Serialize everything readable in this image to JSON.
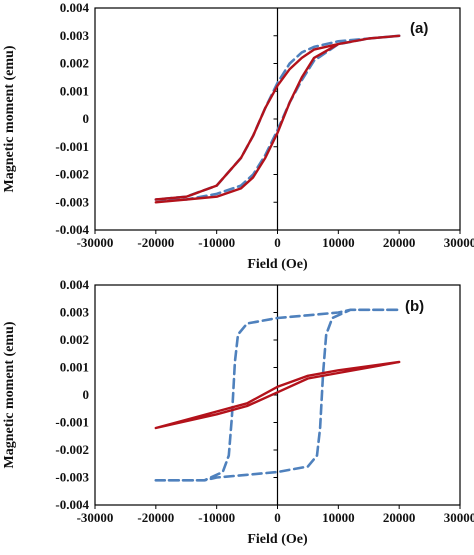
{
  "colors": {
    "solid_series": "#b3121b",
    "dashed_series": "#4f81bd",
    "axis": "#000000"
  },
  "chart_data": [
    {
      "type": "line",
      "panel_label": "(a)",
      "xlabel": "Field (Oe)",
      "ylabel": "Magnetic moment (emu)",
      "xlim": [
        -30000,
        30000
      ],
      "ylim": [
        -0.004,
        0.004
      ],
      "x_ticks": [
        -30000,
        -20000,
        -10000,
        0,
        10000,
        20000,
        30000
      ],
      "y_ticks": [
        0.004,
        0.003,
        0.002,
        0.001,
        0,
        -0.001,
        -0.002,
        -0.003,
        -0.004
      ],
      "x_tick_labels": [
        "-30000",
        "-20000",
        "-10000",
        "0",
        "10000",
        "20000",
        "30000"
      ],
      "y_tick_labels": [
        "0.004",
        "0.003",
        "0.002",
        "0.001",
        "0",
        "-0.001",
        "-0.002",
        "-0.003",
        "-0.004"
      ],
      "grid": false,
      "series": [
        {
          "style": "dashed",
          "color": "#4f81bd",
          "x": [
            -20000,
            -15000,
            -10000,
            -6000,
            -4000,
            -2000,
            0,
            2000,
            4000,
            6000,
            10000,
            15000,
            20000,
            15000,
            10000,
            6000,
            4000,
            2000,
            0,
            -2000,
            -4000,
            -6000,
            -10000,
            -15000,
            -20000
          ],
          "y": [
            -0.0029,
            -0.0029,
            -0.0027,
            -0.0024,
            -0.002,
            -0.0013,
            -0.0004,
            0.0006,
            0.0014,
            0.0021,
            0.0027,
            0.0029,
            0.003,
            0.0029,
            0.0028,
            0.0026,
            0.0024,
            0.002,
            0.0013,
            0.0004,
            -0.0006,
            -0.0014,
            -0.0024,
            -0.0028,
            -0.0029
          ]
        },
        {
          "style": "solid",
          "color": "#b3121b",
          "x": [
            -20000,
            -15000,
            -10000,
            -6000,
            -4000,
            -2000,
            0,
            2000,
            4000,
            6000,
            10000,
            15000,
            20000,
            15000,
            10000,
            6000,
            4000,
            2000,
            0,
            -2000,
            -4000,
            -6000,
            -10000,
            -15000,
            -20000
          ],
          "y": [
            -0.003,
            -0.0029,
            -0.0028,
            -0.0025,
            -0.0021,
            -0.0014,
            -0.0005,
            0.0006,
            0.0015,
            0.0022,
            0.0027,
            0.0029,
            0.003,
            0.0029,
            0.0027,
            0.0025,
            0.0022,
            0.0018,
            0.0012,
            0.0004,
            -0.0006,
            -0.0014,
            -0.0024,
            -0.0028,
            -0.0029
          ]
        }
      ]
    },
    {
      "type": "line",
      "panel_label": "(b)",
      "xlabel": "Field (Oe)",
      "ylabel": "Magnetic moment (emu)",
      "xlim": [
        -30000,
        30000
      ],
      "ylim": [
        -0.004,
        0.004
      ],
      "x_ticks": [
        -30000,
        -20000,
        -10000,
        0,
        10000,
        20000,
        30000
      ],
      "y_ticks": [
        0.004,
        0.003,
        0.002,
        0.001,
        0,
        -0.001,
        -0.002,
        -0.003,
        -0.004
      ],
      "x_tick_labels": [
        "-30000",
        "-20000",
        "-10000",
        "0",
        "10000",
        "20000",
        "30000"
      ],
      "y_tick_labels": [
        "0.004",
        "0.003",
        "0.002",
        "0.001",
        "0",
        "-0.001",
        "-0.002",
        "-0.003",
        "-0.004"
      ],
      "grid": false,
      "series": [
        {
          "style": "dashed",
          "color": "#4f81bd",
          "x": [
            -20000,
            -12000,
            -9000,
            -8000,
            -7500,
            -7000,
            -6500,
            -5000,
            0,
            5000,
            10000,
            12000,
            15000,
            20000,
            12000,
            9000,
            8000,
            7500,
            7000,
            6500,
            5000,
            0,
            -5000,
            -10000,
            -12000,
            -15000,
            -20000
          ],
          "y": [
            -0.0031,
            -0.0031,
            -0.0028,
            -0.0022,
            -0.0008,
            0.0012,
            0.0022,
            0.0026,
            0.0028,
            0.0029,
            0.003,
            0.0031,
            0.0031,
            0.0031,
            0.0031,
            0.0028,
            0.0022,
            0.0008,
            -0.0012,
            -0.0022,
            -0.0026,
            -0.0028,
            -0.0029,
            -0.003,
            -0.0031,
            -0.0031,
            -0.0031
          ]
        },
        {
          "style": "solid",
          "color": "#b3121b",
          "x": [
            -20000,
            -10000,
            -5000,
            0,
            5000,
            10000,
            20000,
            10000,
            5000,
            0,
            -5000,
            -10000,
            -20000
          ],
          "y": [
            -0.0012,
            -0.0007,
            -0.0004,
            0.0001,
            0.0006,
            0.0008,
            0.0012,
            0.0009,
            0.0007,
            0.0003,
            -0.0003,
            -0.0006,
            -0.0012
          ]
        }
      ]
    }
  ]
}
